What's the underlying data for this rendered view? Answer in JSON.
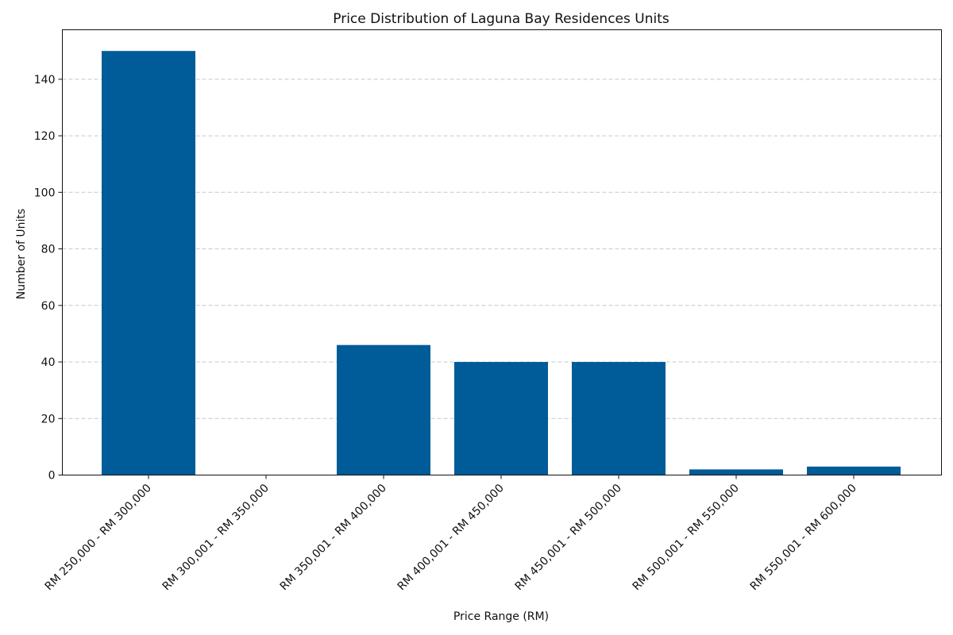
{
  "chart_data": {
    "type": "bar",
    "title": "Price Distribution of Laguna Bay Residences Units",
    "xlabel": "Price Range (RM)",
    "ylabel": "Number of Units",
    "categories": [
      "RM 250,000 - RM 300,000",
      "RM 300,001 - RM 350,000",
      "RM 350,001 - RM 400,000",
      "RM 400,001 - RM 450,000",
      "RM 450,001 - RM 500,000",
      "RM 500,001 - RM 550,000",
      "RM 550,001 - RM 600,000"
    ],
    "values": [
      150,
      0,
      46,
      40,
      40,
      2,
      3
    ],
    "ylim": [
      0,
      157.5
    ],
    "yticks": [
      0,
      20,
      40,
      60,
      80,
      100,
      120,
      140
    ],
    "grid": "y-dashed",
    "bar_color": "#005b99",
    "grid_color": "#c8c8c8"
  }
}
